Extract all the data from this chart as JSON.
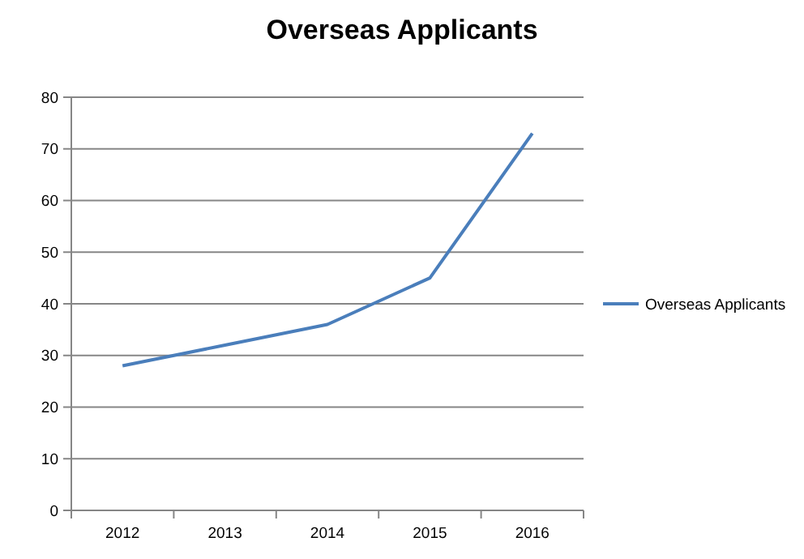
{
  "chart_data": {
    "type": "line",
    "title": "Overseas Applicants",
    "categories": [
      "2012",
      "2013",
      "2014",
      "2015",
      "2016"
    ],
    "series": [
      {
        "name": "Overseas Applicants",
        "color": "#4a7ebb",
        "values": [
          28,
          32,
          36,
          45,
          73
        ]
      }
    ],
    "ylim": [
      0,
      80
    ],
    "yticks": [
      0,
      10,
      20,
      30,
      40,
      50,
      60,
      70,
      80
    ],
    "grid": "y",
    "legend": "right",
    "marker": "none"
  }
}
